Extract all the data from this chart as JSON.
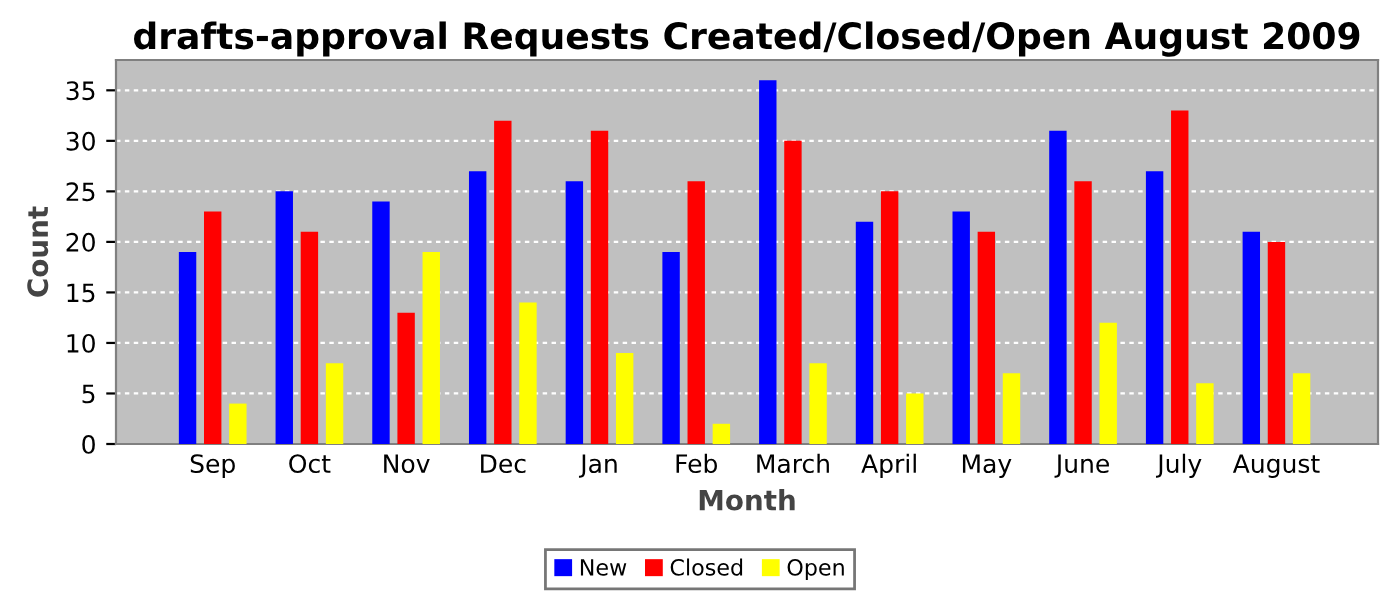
{
  "chart_data": {
    "type": "bar",
    "title": "drafts-approval Requests Created/Closed/Open August 2009",
    "xlabel": "Month",
    "ylabel": "Count",
    "categories": [
      "Sep",
      "Oct",
      "Nov",
      "Dec",
      "Jan",
      "Feb",
      "March",
      "April",
      "May",
      "June",
      "July",
      "August"
    ],
    "series": [
      {
        "name": "New",
        "color": "#0000ff",
        "values": [
          19,
          25,
          24,
          27,
          26,
          19,
          36,
          22,
          23,
          31,
          27,
          21
        ]
      },
      {
        "name": "Closed",
        "color": "#ff0000",
        "values": [
          23,
          21,
          13,
          32,
          31,
          26,
          30,
          25,
          21,
          26,
          33,
          20
        ]
      },
      {
        "name": "Open",
        "color": "#ffff00",
        "values": [
          4,
          8,
          19,
          14,
          9,
          2,
          8,
          5,
          7,
          12,
          6,
          7
        ]
      }
    ],
    "ylim": [
      0,
      38
    ],
    "yticks": [
      0,
      5,
      10,
      15,
      20,
      25,
      30,
      35
    ],
    "grid": "y",
    "legend": "bottom"
  }
}
